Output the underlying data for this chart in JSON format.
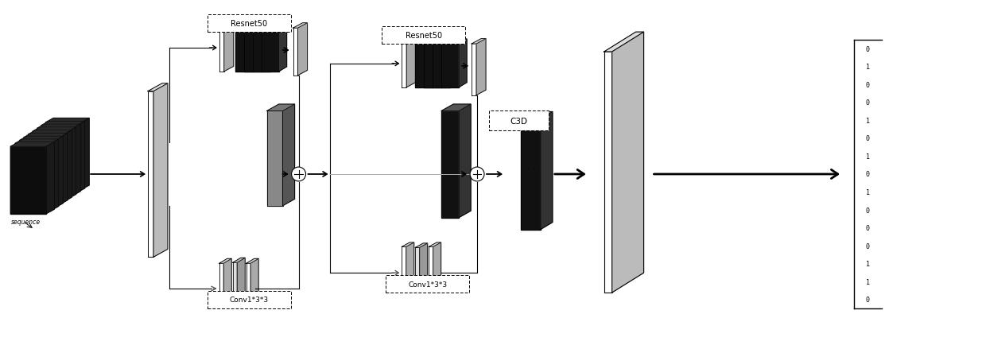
{
  "fig_width": 12.4,
  "fig_height": 4.35,
  "bg_color": "#ffffff",
  "sequence_label": "sequence",
  "resnet50_label": "Resnet50",
  "conv_label": "Conv1*3*3",
  "c3d_label": "C3D",
  "dots_label": "· · ·",
  "binary_sequence": [
    "0",
    "1",
    "0",
    "0",
    "1",
    "0",
    "1",
    "0",
    "1",
    "0",
    "0",
    "0",
    "1",
    "1",
    "0"
  ]
}
